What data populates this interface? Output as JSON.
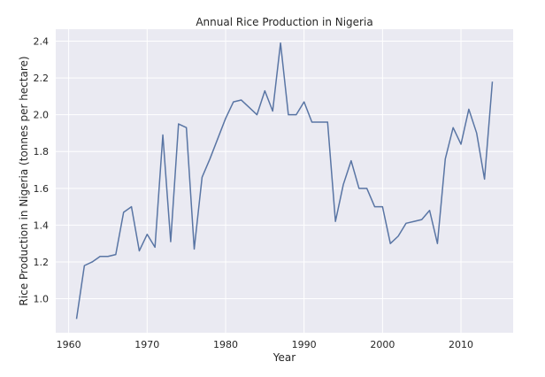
{
  "chart_data": {
    "type": "line",
    "title": "Annual Rice Production in Nigeria",
    "xlabel": "Year",
    "ylabel": "Rice Production in Nigeria (tonnes per hectare)",
    "xlim": [
      1958.35,
      2016.65
    ],
    "ylim": [
      0.815,
      2.465
    ],
    "xticks": [
      1960,
      1970,
      1980,
      1990,
      2000,
      2010
    ],
    "xtick_labels": [
      "1960",
      "1970",
      "1980",
      "1990",
      "2000",
      "2010"
    ],
    "yticks": [
      1.0,
      1.2,
      1.4,
      1.6,
      1.8,
      2.0,
      2.2,
      2.4
    ],
    "ytick_labels": [
      "1.0",
      "1.2",
      "1.4",
      "1.6",
      "1.8",
      "2.0",
      "2.2",
      "2.4"
    ],
    "grid": true,
    "line_color": "#5975a4",
    "background_color": "#eaeaf2",
    "grid_color": "#ffffff",
    "series": [
      {
        "x": [
          1961,
          1962,
          1963,
          1964,
          1965,
          1966,
          1967,
          1968,
          1969,
          1970,
          1971,
          1972,
          1973,
          1974,
          1975,
          1976,
          1977,
          1978,
          1979,
          1980,
          1981,
          1982,
          1983,
          1984,
          1985,
          1986,
          1987,
          1988,
          1989,
          1990,
          1991,
          1992,
          1993,
          1994,
          1995,
          1996,
          1997,
          1998,
          1999,
          2000,
          2001,
          2002,
          2003,
          2004,
          2005,
          2006,
          2007,
          2008,
          2009,
          2010,
          2011,
          2012,
          2013,
          2014
        ],
        "values": [
          0.89,
          1.18,
          1.2,
          1.23,
          1.23,
          1.24,
          1.47,
          1.5,
          1.26,
          1.35,
          1.28,
          1.89,
          1.31,
          1.95,
          1.93,
          1.27,
          1.66,
          1.76,
          1.87,
          1.98,
          2.07,
          2.08,
          2.04,
          2.0,
          2.13,
          2.02,
          2.39,
          2.0,
          2.0,
          2.07,
          1.96,
          1.96,
          1.96,
          1.42,
          1.62,
          1.75,
          1.6,
          1.6,
          1.5,
          1.5,
          1.3,
          1.34,
          1.41,
          1.42,
          1.43,
          1.48,
          1.3,
          1.76,
          1.93,
          1.84,
          2.03,
          1.9,
          1.65,
          2.18
        ]
      }
    ]
  }
}
